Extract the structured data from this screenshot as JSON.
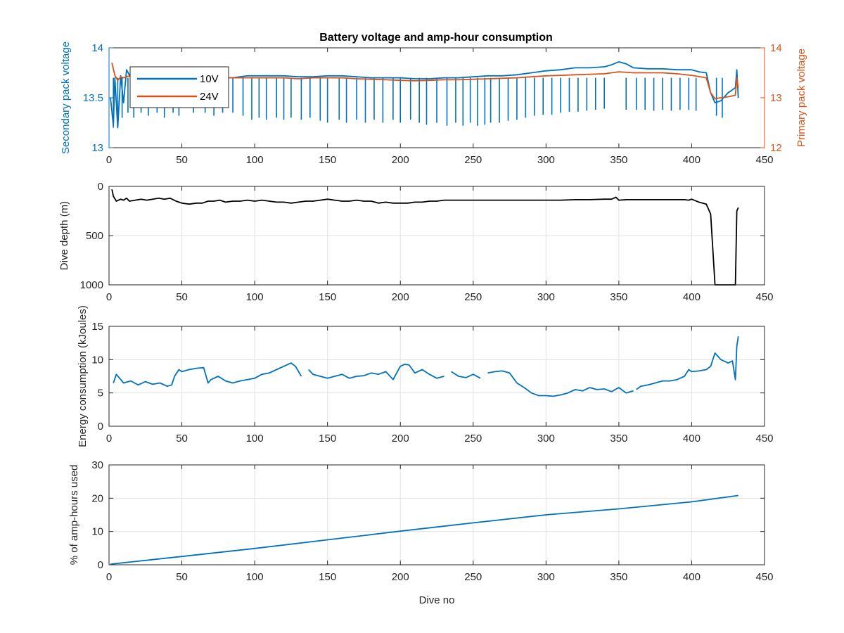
{
  "chart_data": [
    {
      "type": "line",
      "title": "Battery voltage and amp-hour consumption",
      "xlabel": "",
      "xlim": [
        0,
        450
      ],
      "xticks": [
        0,
        50,
        100,
        150,
        200,
        250,
        300,
        350,
        400,
        450
      ],
      "ylabel": "Secondary pack voltage",
      "ylim": [
        13,
        14
      ],
      "yticks": [
        13,
        13.5,
        14
      ],
      "ytick_labels": [
        "13",
        "13.5",
        "14"
      ],
      "y2label": "Primary pack voltage",
      "y2lim": [
        12,
        14
      ],
      "y2ticks": [
        12,
        13,
        14
      ],
      "y2tick_labels": [
        "12",
        "13",
        "14"
      ],
      "grid": false,
      "legend": "top-left",
      "colors": {
        "left_axis": "#0072BD",
        "right_axis": "#D95319"
      },
      "series": [
        {
          "name": "10V",
          "axis": "left",
          "color": "#0072BD",
          "x": [
            1,
            3,
            4,
            6,
            8,
            10,
            12,
            15,
            20,
            25,
            30,
            35,
            40,
            45,
            50,
            55,
            60,
            65,
            70,
            75,
            80,
            85,
            90,
            95,
            100,
            110,
            120,
            130,
            140,
            150,
            160,
            170,
            180,
            190,
            200,
            210,
            220,
            230,
            240,
            250,
            260,
            270,
            280,
            290,
            300,
            310,
            320,
            330,
            340,
            345,
            350,
            355,
            360,
            370,
            380,
            390,
            400,
            405,
            410,
            413,
            416,
            420,
            425,
            430,
            431,
            432
          ],
          "y": [
            13.5,
            13.22,
            13.7,
            13.2,
            13.72,
            13.45,
            13.78,
            13.7,
            13.72,
            13.68,
            13.7,
            13.69,
            13.71,
            13.7,
            13.7,
            13.7,
            13.71,
            13.7,
            13.72,
            13.71,
            13.7,
            13.7,
            13.71,
            13.72,
            13.72,
            13.72,
            13.72,
            13.71,
            13.71,
            13.72,
            13.72,
            13.71,
            13.7,
            13.7,
            13.7,
            13.69,
            13.69,
            13.7,
            13.7,
            13.71,
            13.72,
            13.72,
            13.73,
            13.75,
            13.77,
            13.78,
            13.8,
            13.8,
            13.81,
            13.83,
            13.86,
            13.84,
            13.8,
            13.79,
            13.79,
            13.78,
            13.78,
            13.76,
            13.75,
            13.55,
            13.45,
            13.47,
            13.55,
            13.6,
            13.78,
            13.5
          ],
          "dips": [
            [
              3,
              13.2
            ],
            [
              6,
              13.25
            ],
            [
              9,
              13.3
            ],
            [
              13,
              13.35
            ],
            [
              17,
              13.3
            ],
            [
              22,
              13.35
            ],
            [
              27,
              13.32
            ],
            [
              33,
              13.35
            ],
            [
              38,
              13.3
            ],
            [
              44,
              13.35
            ],
            [
              48,
              13.32
            ],
            [
              58,
              13.35
            ],
            [
              66,
              13.35
            ],
            [
              72,
              13.32
            ],
            [
              78,
              13.35
            ],
            [
              85,
              13.35
            ],
            [
              92,
              13.32
            ],
            [
              98,
              13.28
            ],
            [
              103,
              13.3
            ],
            [
              108,
              13.28
            ],
            [
              115,
              13.3
            ],
            [
              120,
              13.28
            ],
            [
              125,
              13.3
            ],
            [
              132,
              13.28
            ],
            [
              138,
              13.3
            ],
            [
              145,
              13.27
            ],
            [
              150,
              13.25
            ],
            [
              158,
              13.28
            ],
            [
              163,
              13.25
            ],
            [
              170,
              13.28
            ],
            [
              176,
              13.25
            ],
            [
              182,
              13.28
            ],
            [
              188,
              13.25
            ],
            [
              195,
              13.28
            ],
            [
              200,
              13.25
            ],
            [
              207,
              13.28
            ],
            [
              213,
              13.25
            ],
            [
              218,
              13.23
            ],
            [
              225,
              13.25
            ],
            [
              232,
              13.22
            ],
            [
              238,
              13.25
            ],
            [
              243,
              13.22
            ],
            [
              248,
              13.25
            ],
            [
              253,
              13.22
            ],
            [
              258,
              13.23
            ],
            [
              262,
              13.25
            ],
            [
              268,
              13.25
            ],
            [
              274,
              13.27
            ],
            [
              280,
              13.28
            ],
            [
              286,
              13.3
            ],
            [
              292,
              13.32
            ],
            [
              298,
              13.33
            ],
            [
              304,
              13.33
            ],
            [
              310,
              13.35
            ],
            [
              316,
              13.36
            ],
            [
              322,
              13.36
            ],
            [
              328,
              13.37
            ],
            [
              334,
              13.38
            ],
            [
              340,
              13.39
            ],
            [
              355,
              13.38
            ],
            [
              362,
              13.38
            ],
            [
              368,
              13.38
            ],
            [
              374,
              13.37
            ],
            [
              380,
              13.38
            ],
            [
              386,
              13.37
            ],
            [
              392,
              13.38
            ],
            [
              398,
              13.38
            ],
            [
              403,
              13.37
            ],
            [
              417,
              13.32
            ],
            [
              421,
              13.3
            ]
          ]
        },
        {
          "name": "24V",
          "axis": "right",
          "color": "#D95319",
          "x": [
            2,
            4,
            6,
            8,
            10,
            15,
            20,
            30,
            40,
            50,
            60,
            70,
            80,
            90,
            100,
            110,
            120,
            130,
            140,
            150,
            160,
            170,
            180,
            190,
            200,
            210,
            220,
            230,
            240,
            250,
            260,
            270,
            280,
            290,
            300,
            310,
            320,
            330,
            340,
            350,
            360,
            370,
            380,
            390,
            400,
            410,
            413,
            416,
            420,
            425,
            430,
            431,
            432
          ],
          "y": [
            13.7,
            13.45,
            13.35,
            13.42,
            13.4,
            13.45,
            13.44,
            13.42,
            13.4,
            13.4,
            13.4,
            13.42,
            13.4,
            13.4,
            13.4,
            13.4,
            13.4,
            13.38,
            13.4,
            13.4,
            13.4,
            13.38,
            13.37,
            13.36,
            13.35,
            13.34,
            13.35,
            13.36,
            13.36,
            13.37,
            13.38,
            13.39,
            13.4,
            13.42,
            13.44,
            13.45,
            13.46,
            13.47,
            13.48,
            13.52,
            13.5,
            13.5,
            13.5,
            13.48,
            13.45,
            13.4,
            13.1,
            12.98,
            13.0,
            13.02,
            13.05,
            13.4,
            13.2
          ]
        }
      ]
    },
    {
      "type": "line",
      "title": "",
      "xlabel": "",
      "xlim": [
        0,
        450
      ],
      "xticks": [
        0,
        50,
        100,
        150,
        200,
        250,
        300,
        350,
        400,
        450
      ],
      "ylabel": "Dive depth (m)",
      "ylim": [
        0,
        1000
      ],
      "y_reversed": true,
      "yticks": [
        0,
        500,
        1000
      ],
      "ytick_labels": [
        "0",
        "500",
        "1000"
      ],
      "grid": true,
      "series": [
        {
          "color": "#000000",
          "x": [
            2,
            3,
            5,
            8,
            10,
            12,
            14,
            18,
            22,
            26,
            30,
            34,
            38,
            42,
            46,
            50,
            55,
            60,
            64,
            68,
            72,
            76,
            80,
            85,
            90,
            95,
            100,
            105,
            110,
            115,
            120,
            125,
            130,
            135,
            140,
            145,
            150,
            155,
            160,
            165,
            170,
            175,
            180,
            185,
            190,
            195,
            200,
            205,
            210,
            215,
            220,
            225,
            230,
            235,
            240,
            250,
            260,
            270,
            280,
            290,
            300,
            310,
            320,
            330,
            340,
            345,
            348,
            350,
            355,
            360,
            370,
            380,
            390,
            395,
            398,
            400,
            405,
            410,
            413,
            416,
            420,
            425,
            428,
            430,
            431,
            432
          ],
          "y": [
            30,
            100,
            150,
            130,
            140,
            120,
            150,
            140,
            130,
            140,
            130,
            120,
            130,
            120,
            150,
            170,
            180,
            170,
            170,
            150,
            150,
            140,
            160,
            150,
            150,
            140,
            150,
            140,
            150,
            160,
            160,
            170,
            160,
            150,
            150,
            140,
            130,
            140,
            150,
            150,
            140,
            150,
            150,
            170,
            160,
            170,
            170,
            170,
            160,
            160,
            150,
            150,
            140,
            140,
            140,
            140,
            140,
            140,
            140,
            140,
            140,
            140,
            135,
            135,
            130,
            130,
            110,
            140,
            135,
            135,
            135,
            135,
            135,
            135,
            140,
            130,
            160,
            180,
            280,
            1000,
            1000,
            1000,
            1000,
            1000,
            250,
            215
          ]
        }
      ]
    },
    {
      "type": "line",
      "title": "",
      "xlabel": "",
      "xlim": [
        0,
        450
      ],
      "xticks": [
        0,
        50,
        100,
        150,
        200,
        250,
        300,
        350,
        400,
        450
      ],
      "ylabel": "Energy consumption (kJoules)",
      "ylim": [
        0,
        15
      ],
      "yticks": [
        0,
        5,
        10,
        15
      ],
      "ytick_labels": [
        "0",
        "5",
        "10",
        "15"
      ],
      "grid": true,
      "series": [
        {
          "color": "#0072BD",
          "x": [
            3,
            5,
            10,
            15,
            20,
            25,
            30,
            35,
            40,
            43,
            45,
            48,
            50,
            55,
            60,
            65,
            68,
            70,
            75,
            80,
            85,
            90,
            95,
            100,
            105,
            110,
            115,
            120,
            125,
            128,
            132
          ],
          "y": [
            6.5,
            7.8,
            6.5,
            6.8,
            6.2,
            6.7,
            6.3,
            6.5,
            6.0,
            6.2,
            7.5,
            8.5,
            8.2,
            8.5,
            8.7,
            8.8,
            6.5,
            7.0,
            7.5,
            6.8,
            6.5,
            6.8,
            7.0,
            7.2,
            7.8,
            8.0,
            8.5,
            9.0,
            9.5,
            9.0,
            7.5
          ]
        },
        {
          "color": "#0072BD",
          "x": [
            137,
            140,
            145,
            150,
            155,
            160,
            165,
            170,
            175,
            180,
            185,
            190,
            195,
            200,
            203,
            206,
            210,
            215,
            220,
            225,
            230
          ],
          "y": [
            8.5,
            7.8,
            7.5,
            7.2,
            7.5,
            7.8,
            7.2,
            7.5,
            7.6,
            8.0,
            7.8,
            8.2,
            7.0,
            9.0,
            9.3,
            9.2,
            8.0,
            8.5,
            7.8,
            7.2,
            7.5
          ]
        },
        {
          "color": "#0072BD",
          "x": [
            235,
            240,
            245,
            250,
            255
          ],
          "y": [
            8.2,
            7.5,
            7.3,
            7.8,
            7.2
          ]
        },
        {
          "color": "#0072BD",
          "x": [
            260,
            265,
            270,
            275,
            280,
            285,
            290,
            295,
            300,
            305,
            310,
            315,
            320,
            325,
            330,
            335,
            340,
            345,
            350,
            355,
            360
          ],
          "y": [
            8.0,
            8.2,
            8.3,
            8.0,
            6.5,
            5.8,
            5.0,
            4.6,
            4.6,
            4.5,
            4.7,
            5.0,
            5.5,
            5.3,
            5.8,
            5.5,
            5.6,
            5.2,
            5.8,
            5.0,
            5.3
          ]
        },
        {
          "color": "#0072BD",
          "x": [
            362,
            365,
            370,
            375,
            380,
            385,
            390,
            395,
            398,
            400,
            405,
            410,
            413,
            416,
            420,
            425,
            428,
            430,
            431,
            432
          ],
          "y": [
            5.5,
            6.0,
            6.2,
            6.5,
            6.8,
            6.8,
            7.0,
            7.5,
            8.5,
            8.2,
            8.3,
            8.5,
            9.0,
            11.0,
            10.0,
            9.5,
            9.8,
            7.0,
            12.0,
            13.5
          ]
        }
      ]
    },
    {
      "type": "line",
      "title": "",
      "xlabel": "Dive no",
      "xlim": [
        0,
        450
      ],
      "xticks": [
        0,
        50,
        100,
        150,
        200,
        250,
        300,
        350,
        400,
        450
      ],
      "ylabel": "% of amp-hours used",
      "ylim": [
        0,
        30
      ],
      "yticks": [
        0,
        10,
        20,
        30
      ],
      "ytick_labels": [
        "0",
        "10",
        "20",
        "30"
      ],
      "grid": true,
      "series": [
        {
          "color": "#0072BD",
          "x": [
            1,
            50,
            100,
            150,
            200,
            250,
            300,
            350,
            400,
            432
          ],
          "y": [
            0.2,
            2.5,
            4.9,
            7.5,
            10.1,
            12.6,
            15.0,
            16.8,
            18.9,
            20.8
          ]
        }
      ]
    }
  ]
}
